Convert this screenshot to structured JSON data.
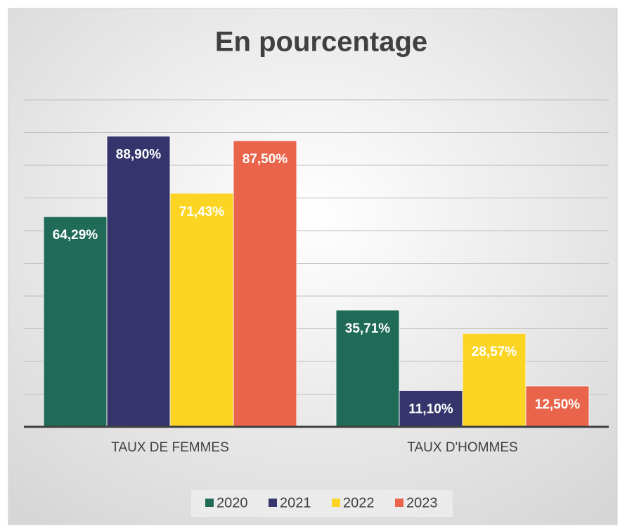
{
  "chart_data": {
    "type": "bar",
    "title": "En pourcentage",
    "categories": [
      "TAUX DE FEMMES",
      "TAUX D'HOMMES"
    ],
    "series": [
      {
        "name": "2020",
        "color": "#1f6b58",
        "values": [
          64.29,
          35.71
        ],
        "value_labels": [
          "64,29%",
          "35,71%"
        ]
      },
      {
        "name": "2021",
        "color": "#35346c",
        "values": [
          88.9,
          11.1
        ],
        "value_labels": [
          "88,90%",
          "11,10%"
        ]
      },
      {
        "name": "2022",
        "color": "#fbd424",
        "values": [
          71.43,
          28.57
        ],
        "value_labels": [
          "71,43%",
          "28,57%"
        ]
      },
      {
        "name": "2023",
        "color": "#e9644a",
        "values": [
          87.5,
          12.5
        ],
        "value_labels": [
          "87,50%",
          "12,50%"
        ]
      }
    ],
    "ylim": [
      0,
      100
    ],
    "yticks": [
      0,
      10,
      20,
      30,
      40,
      50,
      60,
      70,
      80,
      90,
      100
    ],
    "grid": true,
    "legend": "bottom"
  }
}
